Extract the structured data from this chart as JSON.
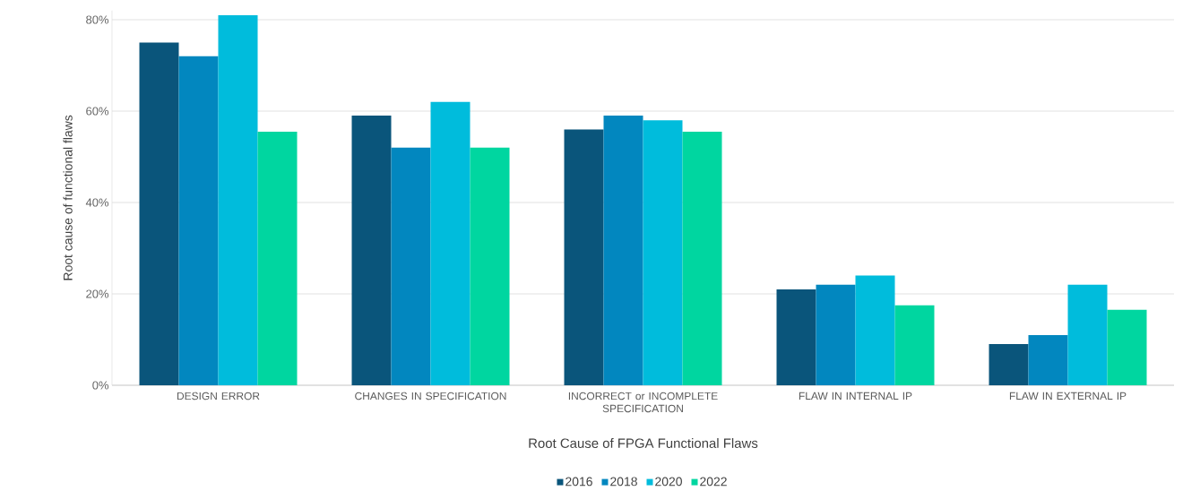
{
  "chart_data": {
    "type": "bar",
    "xlabel": "Root Cause of FPGA Functional Flaws",
    "ylabel": "Root cause of functional flaws",
    "categories": [
      "DESIGN ERROR",
      "CHANGES IN SPECIFICATION",
      "INCORRECT or INCOMPLETE SPECIFICATION",
      "FLAW IN INTERNAL IP",
      "FLAW IN EXTERNAL IP"
    ],
    "series": [
      {
        "name": "2016",
        "color": "#0a557b",
        "values": [
          75,
          59,
          56,
          21,
          9
        ]
      },
      {
        "name": "2018",
        "color": "#0287bf",
        "values": [
          72,
          52,
          59,
          22,
          11
        ]
      },
      {
        "name": "2020",
        "color": "#00bcdc",
        "values": [
          81,
          62,
          58,
          24,
          22
        ]
      },
      {
        "name": "2022",
        "color": "#00d6a0",
        "values": [
          55.5,
          52,
          55.5,
          17.5,
          16.5
        ]
      }
    ],
    "ylim": [
      0,
      82
    ],
    "yticks": [
      {
        "value": 0,
        "label": "0%"
      },
      {
        "value": 20,
        "label": "20%"
      },
      {
        "value": 40,
        "label": "40%"
      },
      {
        "value": 60,
        "label": "60%"
      },
      {
        "value": 80,
        "label": "80%"
      }
    ],
    "grid": "y",
    "legend": "bottom"
  }
}
